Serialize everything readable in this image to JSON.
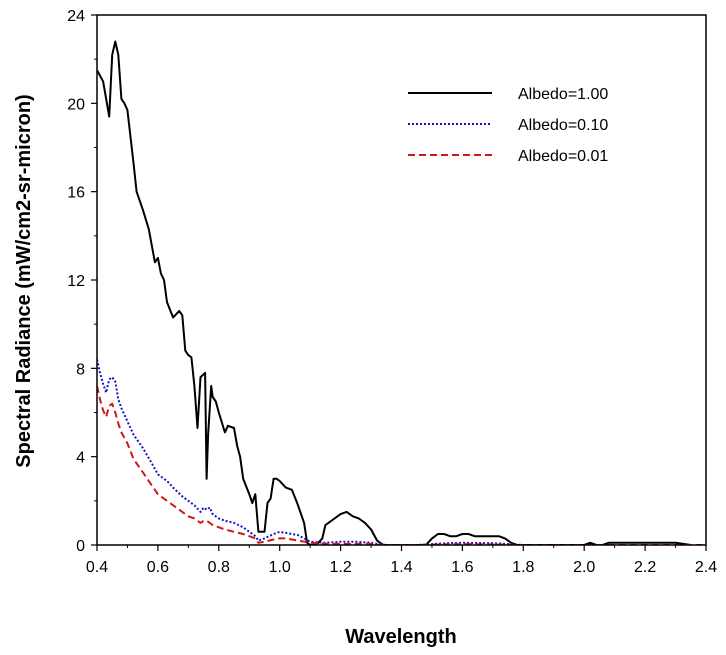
{
  "chart_data": {
    "type": "line",
    "title": "",
    "xlabel": "Wavelength",
    "ylabel": "Spectral Radiance (mW/cm2-sr-micron)",
    "xlim": [
      0.4,
      2.4
    ],
    "ylim": [
      0,
      24
    ],
    "xticks": [
      "0.4",
      "0.6",
      "0.8",
      "1.0",
      "1.2",
      "1.4",
      "1.6",
      "1.8",
      "2.0",
      "2.2",
      "2.4"
    ],
    "yticks": [
      "0",
      "4",
      "8",
      "12",
      "16",
      "20",
      "24"
    ],
    "grid": false,
    "legend_position": "top-right",
    "series": [
      {
        "name": "Albedo=1.00",
        "color": "#000000",
        "dash": "solid",
        "x": [
          0.4,
          0.42,
          0.44,
          0.45,
          0.46,
          0.47,
          0.48,
          0.49,
          0.5,
          0.52,
          0.53,
          0.55,
          0.57,
          0.59,
          0.6,
          0.61,
          0.62,
          0.63,
          0.65,
          0.67,
          0.68,
          0.69,
          0.7,
          0.71,
          0.72,
          0.73,
          0.74,
          0.755,
          0.76,
          0.765,
          0.775,
          0.78,
          0.79,
          0.8,
          0.82,
          0.83,
          0.85,
          0.86,
          0.87,
          0.88,
          0.9,
          0.91,
          0.92,
          0.93,
          0.94,
          0.95,
          0.96,
          0.97,
          0.98,
          0.99,
          1.0,
          1.02,
          1.04,
          1.06,
          1.08,
          1.09,
          1.1,
          1.12,
          1.14,
          1.15,
          1.16,
          1.18,
          1.2,
          1.22,
          1.24,
          1.26,
          1.28,
          1.3,
          1.32,
          1.34,
          1.36,
          1.4,
          1.44,
          1.48,
          1.5,
          1.52,
          1.54,
          1.56,
          1.58,
          1.6,
          1.62,
          1.64,
          1.66,
          1.68,
          1.7,
          1.72,
          1.74,
          1.76,
          1.78,
          1.8,
          1.9,
          2.0,
          2.02,
          2.04,
          2.06,
          2.08,
          2.1,
          2.2,
          2.3,
          2.35
        ],
        "values": [
          21.5,
          21.0,
          19.4,
          22.2,
          22.8,
          22.2,
          20.2,
          20.0,
          19.7,
          17.3,
          16.0,
          15.2,
          14.3,
          12.8,
          13.0,
          12.3,
          12.0,
          11.0,
          10.3,
          10.6,
          10.4,
          8.8,
          8.6,
          8.5,
          7.2,
          5.3,
          7.6,
          7.8,
          3.0,
          5.0,
          7.2,
          6.7,
          6.5,
          6.0,
          5.1,
          5.4,
          5.3,
          4.5,
          4.0,
          3.0,
          2.3,
          1.9,
          2.3,
          0.6,
          0.6,
          0.6,
          1.9,
          2.1,
          3.0,
          3.0,
          2.9,
          2.6,
          2.5,
          1.8,
          1.0,
          0.1,
          0.0,
          0.0,
          0.3,
          0.9,
          1.0,
          1.2,
          1.4,
          1.5,
          1.3,
          1.2,
          1.0,
          0.7,
          0.2,
          0.0,
          0.0,
          0.0,
          0.0,
          0.0,
          0.3,
          0.5,
          0.5,
          0.4,
          0.4,
          0.5,
          0.5,
          0.4,
          0.4,
          0.4,
          0.4,
          0.4,
          0.3,
          0.1,
          0.0,
          0.0,
          0.0,
          0.0,
          0.1,
          0.0,
          0.0,
          0.1,
          0.1,
          0.1,
          0.1,
          0.0
        ]
      },
      {
        "name": "Albedo=0.10",
        "color": "#1414c8",
        "dash": "dotted",
        "x": [
          0.4,
          0.41,
          0.42,
          0.43,
          0.44,
          0.45,
          0.46,
          0.47,
          0.48,
          0.5,
          0.52,
          0.55,
          0.58,
          0.6,
          0.63,
          0.65,
          0.68,
          0.7,
          0.72,
          0.74,
          0.75,
          0.76,
          0.77,
          0.78,
          0.8,
          0.82,
          0.85,
          0.88,
          0.9,
          0.92,
          0.93,
          0.95,
          0.98,
          1.0,
          1.02,
          1.04,
          1.06,
          1.08,
          1.1,
          1.15,
          1.2,
          1.25,
          1.3,
          1.32,
          1.35,
          1.45,
          1.55,
          1.6,
          1.7,
          1.78,
          1.8
        ],
        "values": [
          8.4,
          7.8,
          7.3,
          6.9,
          7.5,
          7.6,
          7.4,
          6.6,
          6.2,
          5.6,
          5.0,
          4.4,
          3.7,
          3.2,
          2.9,
          2.6,
          2.2,
          2.0,
          1.8,
          1.5,
          1.7,
          1.6,
          1.7,
          1.4,
          1.2,
          1.1,
          1.0,
          0.8,
          0.6,
          0.4,
          0.2,
          0.3,
          0.5,
          0.6,
          0.55,
          0.5,
          0.45,
          0.3,
          0.15,
          0.1,
          0.15,
          0.15,
          0.1,
          0.05,
          0.0,
          0.0,
          0.08,
          0.1,
          0.08,
          0.02,
          0.0
        ]
      },
      {
        "name": "Albedo=0.01",
        "color": "#d01818",
        "dash": "dashed",
        "x": [
          0.4,
          0.41,
          0.42,
          0.43,
          0.44,
          0.45,
          0.46,
          0.47,
          0.48,
          0.5,
          0.52,
          0.55,
          0.58,
          0.6,
          0.63,
          0.65,
          0.68,
          0.7,
          0.72,
          0.74,
          0.75,
          0.76,
          0.77,
          0.78,
          0.8,
          0.82,
          0.85,
          0.88,
          0.9,
          0.92,
          0.93,
          0.95,
          0.98,
          1.0,
          1.02,
          1.04,
          1.06,
          1.08,
          1.1,
          1.15,
          1.2,
          1.25,
          1.3,
          1.32,
          1.35,
          1.45,
          1.55,
          1.6,
          1.7,
          1.78,
          2.4
        ],
        "values": [
          7.2,
          6.6,
          6.1,
          5.8,
          6.3,
          6.4,
          6.0,
          5.5,
          5.1,
          4.6,
          3.9,
          3.3,
          2.7,
          2.3,
          2.0,
          1.8,
          1.5,
          1.3,
          1.2,
          1.0,
          1.1,
          1.1,
          1.0,
          0.9,
          0.8,
          0.7,
          0.6,
          0.5,
          0.4,
          0.3,
          0.1,
          0.15,
          0.25,
          0.3,
          0.3,
          0.25,
          0.2,
          0.15,
          0.1,
          0.05,
          0.05,
          0.05,
          0.05,
          0.02,
          0.0,
          0.0,
          0.03,
          0.04,
          0.03,
          0.0,
          0.0
        ]
      }
    ]
  }
}
